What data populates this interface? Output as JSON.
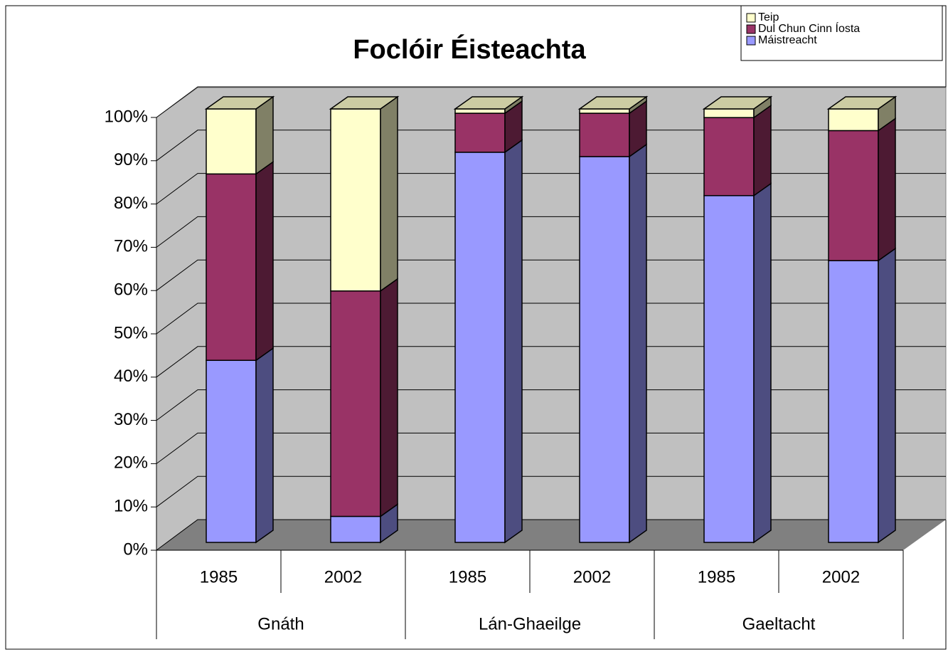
{
  "chart_data": {
    "type": "bar3d_stacked",
    "title": "Foclóir Éisteachta",
    "categories": [
      "1985",
      "2002",
      "1985",
      "2002",
      "1985",
      "2002"
    ],
    "groups": [
      "Gnáth",
      "Lán-Ghaeilge",
      "Gaeltacht"
    ],
    "series": [
      {
        "name": "Máistreacht",
        "color": "#9999ff",
        "values": [
          42,
          6,
          90,
          89,
          80,
          65
        ]
      },
      {
        "name": "Dul Chun Cinn Íosta",
        "color": "#993366",
        "values": [
          43,
          52,
          9,
          10,
          18,
          30
        ]
      },
      {
        "name": "Teip",
        "color": "#ffffcc",
        "values": [
          15,
          42,
          1,
          1,
          2,
          5
        ]
      }
    ],
    "ylim": [
      0,
      100
    ],
    "yticks": [
      {
        "value": 0,
        "label": "0%"
      },
      {
        "value": 10,
        "label": "10%"
      },
      {
        "value": 20,
        "label": "20%"
      },
      {
        "value": 30,
        "label": "30%"
      },
      {
        "value": 40,
        "label": "40%"
      },
      {
        "value": 50,
        "label": "50%"
      },
      {
        "value": 60,
        "label": "60%"
      },
      {
        "value": 70,
        "label": "70%"
      },
      {
        "value": 80,
        "label": "80%"
      },
      {
        "value": 90,
        "label": "90%"
      },
      {
        "value": 100,
        "label": "100%"
      }
    ],
    "grid": true,
    "legend": "top-right"
  }
}
